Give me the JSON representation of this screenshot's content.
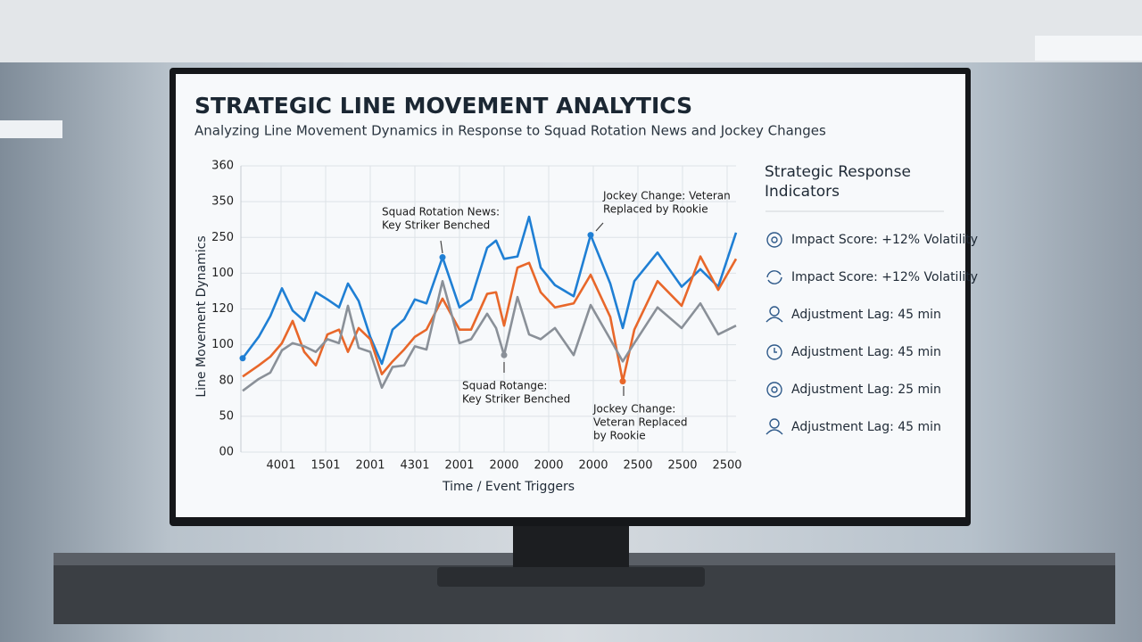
{
  "chart_data": {
    "type": "line",
    "title": "STRATEGIC LINE MOVEMENT ANALYTICS",
    "subtitle": "Analyzing Line Movement Dynamics in Response to Squad Rotation News and Jockey Changes",
    "ylabel": "Line Movement Dynamics",
    "xlabel": "Time / Event Triggers",
    "x": [
      0.04,
      0.4,
      0.66,
      0.92,
      1.16,
      1.42,
      1.68,
      1.94,
      2.2,
      2.4,
      2.64,
      2.9,
      3.16,
      3.4,
      3.66,
      3.9,
      4.16,
      4.52,
      4.9,
      5.16,
      5.52,
      5.72,
      5.9,
      6.2,
      6.46,
      6.72,
      7.04,
      7.46,
      7.84,
      8.28,
      8.56,
      8.82,
      9.34,
      9.88,
      10.3,
      10.7,
      11.1
    ],
    "xlim": [
      0,
      11.1
    ],
    "xticks": [
      {
        "value": 0.9,
        "label": "4001"
      },
      {
        "value": 1.9,
        "label": "1501"
      },
      {
        "value": 2.9,
        "label": "2001"
      },
      {
        "value": 3.9,
        "label": "4301"
      },
      {
        "value": 4.9,
        "label": "2001"
      },
      {
        "value": 5.9,
        "label": "2000"
      },
      {
        "value": 6.9,
        "label": "2000"
      },
      {
        "value": 7.9,
        "label": "2000"
      },
      {
        "value": 8.9,
        "label": "2500"
      },
      {
        "value": 9.9,
        "label": "2500"
      },
      {
        "value": 10.9,
        "label": "2500"
      }
    ],
    "ylim": [
      0,
      360
    ],
    "yticks": [
      {
        "value": 0,
        "label": "00"
      },
      {
        "value": 45,
        "label": "50"
      },
      {
        "value": 90,
        "label": "80"
      },
      {
        "value": 135,
        "label": "100"
      },
      {
        "value": 180,
        "label": "120"
      },
      {
        "value": 225,
        "label": "100"
      },
      {
        "value": 270,
        "label": "250"
      },
      {
        "value": 315,
        "label": "350"
      },
      360
    ],
    "grid": true,
    "series": [
      {
        "color": "#1f7fd4",
        "values": [
          118,
          145,
          171,
          206,
          178,
          165,
          201,
          192,
          182,
          212,
          190,
          145,
          111,
          154,
          167,
          192,
          187,
          245,
          182,
          192,
          257,
          266,
          243,
          246,
          296,
          232,
          210,
          196,
          273,
          212,
          156,
          215,
          251,
          208,
          230,
          208,
          276
        ]
      },
      {
        "color": "#e8672a",
        "values": [
          95,
          109,
          120,
          137,
          165,
          126,
          109,
          148,
          154,
          126,
          156,
          142,
          98,
          114,
          129,
          145,
          154,
          193,
          154,
          154,
          199,
          201,
          159,
          232,
          238,
          201,
          182,
          187,
          223,
          170,
          89,
          154,
          215,
          184,
          246,
          204,
          243
        ]
      },
      {
        "color": "#8a9098",
        "values": [
          77,
          92,
          100,
          128,
          137,
          133,
          126,
          142,
          137,
          184,
          131,
          126,
          81,
          107,
          109,
          133,
          129,
          215,
          137,
          142,
          174,
          156,
          122,
          195,
          148,
          142,
          156,
          122,
          185,
          142,
          114,
          137,
          182,
          156,
          187,
          148,
          159
        ]
      }
    ],
    "annotations": [
      [
        "Squad Rotation News:",
        "Key Striker Benched"
      ],
      [
        "Squad Rotange:",
        "Key Striker Benched"
      ],
      [
        "Jockey Change: Veteran",
        "Replaced by Rookie"
      ],
      [
        "Jockey Change:",
        "Veteran Replaced",
        "by Rookie"
      ]
    ]
  },
  "panel": {
    "title": [
      "Strategic Response",
      "Indicators"
    ],
    "items": [
      "Impact Score: +12% Volatility",
      "Impact Score: +12% Volatility",
      "Adjustment Lag: 45 min",
      "Adjustment Lag: 45 min",
      "Adjustment Lag: 25 min",
      "Adjustment Lag: 45 min"
    ]
  }
}
